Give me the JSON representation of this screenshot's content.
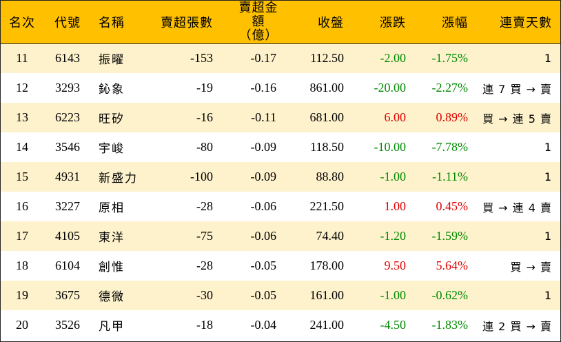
{
  "headers": {
    "rank": "名次",
    "code": "代號",
    "name": "名稱",
    "net_lots": "賣超張數",
    "net_amount_line1": "賣超金額",
    "net_amount_line2": "（億）",
    "close": "收盤",
    "change": "漲跌",
    "pct": "漲幅",
    "streak": "連賣天數"
  },
  "colors": {
    "header_bg": "#ffc000",
    "odd_row_bg": "#fdf2cc",
    "up": "#e00000",
    "down": "#008a00"
  },
  "rows": [
    {
      "rank": "11",
      "code": "6143",
      "name": "振曜",
      "net_lots": "-153",
      "net_amount": "-0.17",
      "close": "112.50",
      "change": "-2.00",
      "pct": "-1.75%",
      "dir": "down",
      "streak": "1"
    },
    {
      "rank": "12",
      "code": "3293",
      "name": "鈊象",
      "net_lots": "-19",
      "net_amount": "-0.16",
      "close": "861.00",
      "change": "-20.00",
      "pct": "-2.27%",
      "dir": "down",
      "streak": "連 7 買 → 賣"
    },
    {
      "rank": "13",
      "code": "6223",
      "name": "旺矽",
      "net_lots": "-16",
      "net_amount": "-0.11",
      "close": "681.00",
      "change": "6.00",
      "pct": "0.89%",
      "dir": "up",
      "streak": "買 → 連 5 賣"
    },
    {
      "rank": "14",
      "code": "3546",
      "name": "宇峻",
      "net_lots": "-80",
      "net_amount": "-0.09",
      "close": "118.50",
      "change": "-10.00",
      "pct": "-7.78%",
      "dir": "down",
      "streak": "1"
    },
    {
      "rank": "15",
      "code": "4931",
      "name": "新盛力",
      "net_lots": "-100",
      "net_amount": "-0.09",
      "close": "88.80",
      "change": "-1.00",
      "pct": "-1.11%",
      "dir": "down",
      "streak": "1"
    },
    {
      "rank": "16",
      "code": "3227",
      "name": "原相",
      "net_lots": "-28",
      "net_amount": "-0.06",
      "close": "221.50",
      "change": "1.00",
      "pct": "0.45%",
      "dir": "up",
      "streak": "買 → 連 4 賣"
    },
    {
      "rank": "17",
      "code": "4105",
      "name": "東洋",
      "net_lots": "-75",
      "net_amount": "-0.06",
      "close": "74.40",
      "change": "-1.20",
      "pct": "-1.59%",
      "dir": "down",
      "streak": "1"
    },
    {
      "rank": "18",
      "code": "6104",
      "name": "創惟",
      "net_lots": "-28",
      "net_amount": "-0.05",
      "close": "178.00",
      "change": "9.50",
      "pct": "5.64%",
      "dir": "up",
      "streak": "買 → 賣"
    },
    {
      "rank": "19",
      "code": "3675",
      "name": "德微",
      "net_lots": "-30",
      "net_amount": "-0.05",
      "close": "161.00",
      "change": "-1.00",
      "pct": "-0.62%",
      "dir": "down",
      "streak": "1"
    },
    {
      "rank": "20",
      "code": "3526",
      "name": "凡甲",
      "net_lots": "-18",
      "net_amount": "-0.04",
      "close": "241.00",
      "change": "-4.50",
      "pct": "-1.83%",
      "dir": "down",
      "streak": "連 2 買 → 賣"
    }
  ]
}
